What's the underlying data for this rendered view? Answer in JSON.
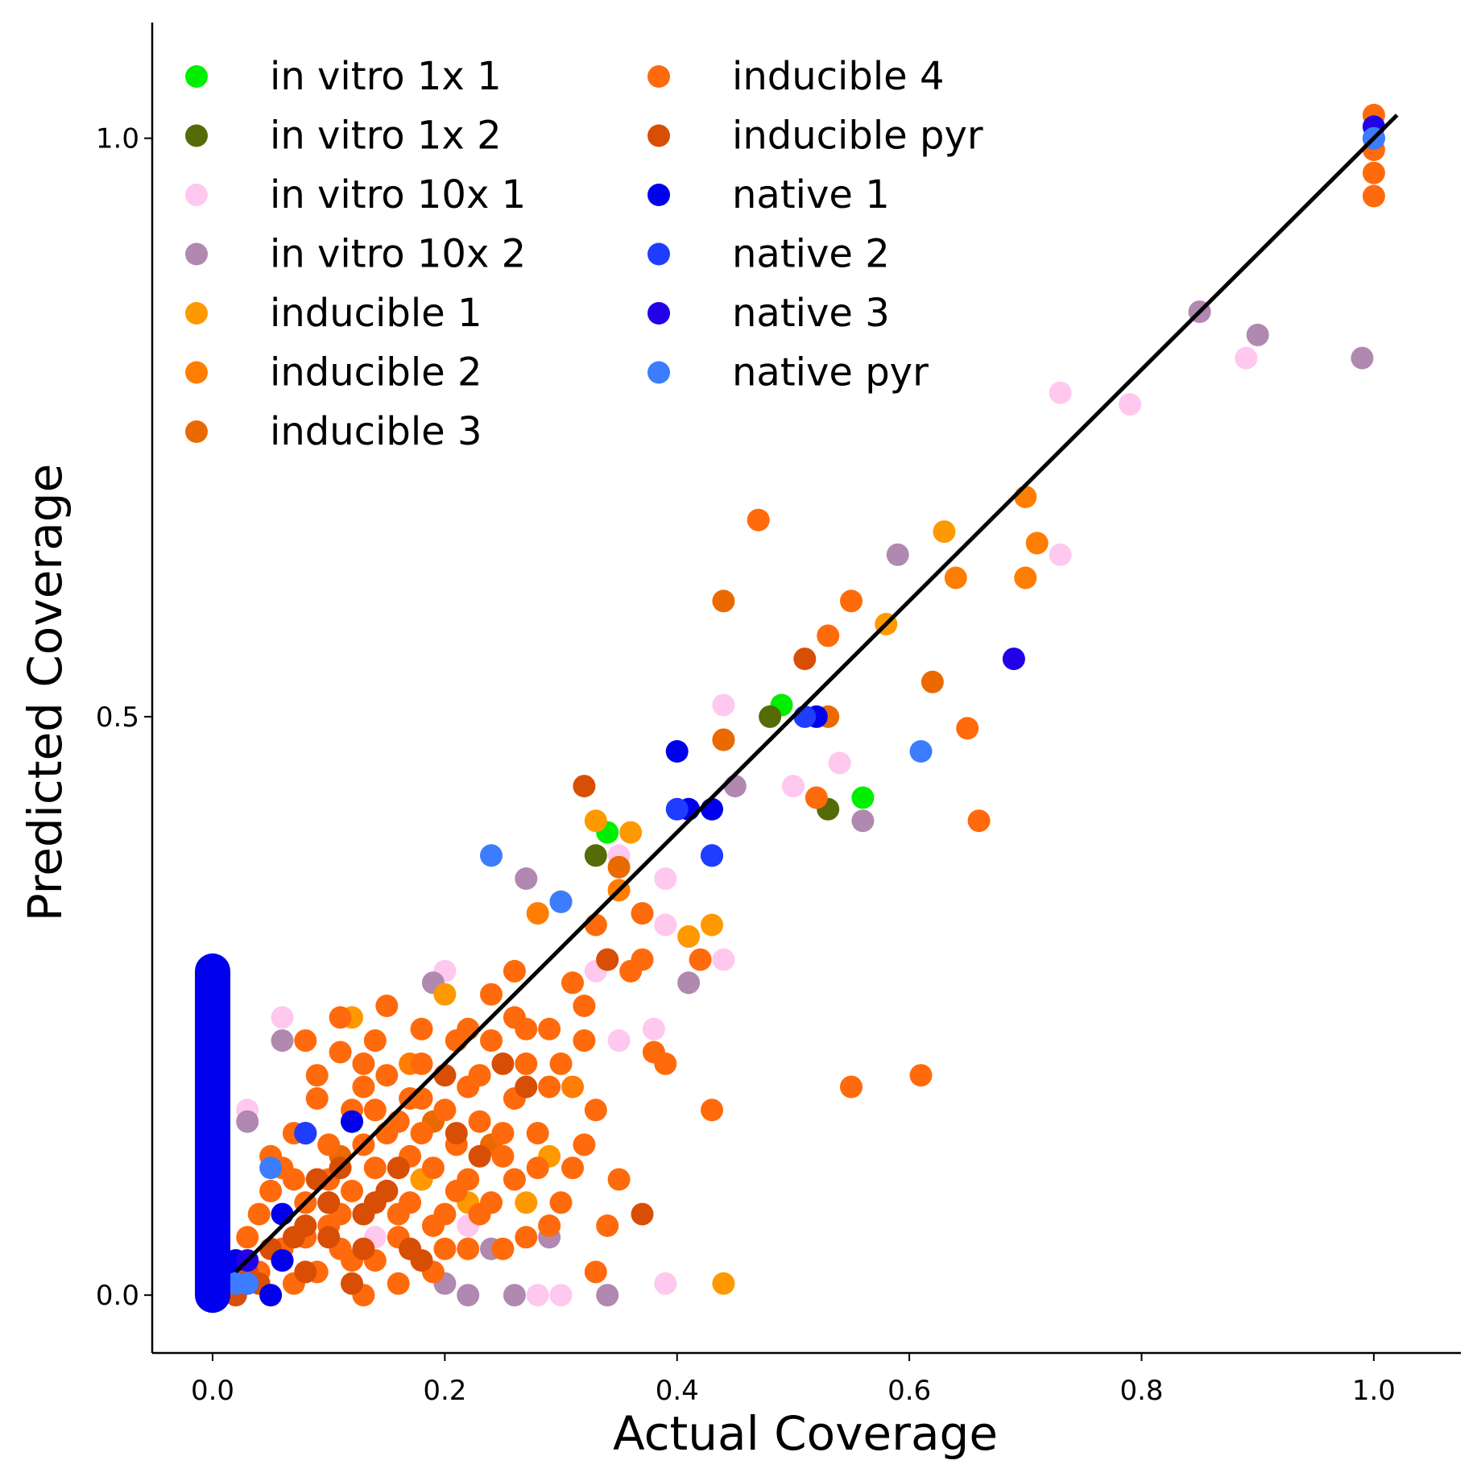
{
  "chart_data": {
    "type": "scatter",
    "xlabel": "Actual Coverage",
    "ylabel": "Predicted Coverage",
    "xlim": [
      -0.052,
      1.075
    ],
    "ylim": [
      -0.05,
      1.1
    ],
    "xticks": [
      "0.0",
      "0.2",
      "0.4",
      "0.6",
      "0.8",
      "1.0"
    ],
    "yticks": [
      "0.0",
      "0.5",
      "1.0"
    ],
    "grid": false,
    "legend_position": "top-left, two columns",
    "diagonal_line": {
      "x": [
        0.02,
        1.02
      ],
      "y": [
        0.02,
        1.02
      ],
      "color": "#000000"
    },
    "series": [
      {
        "name": "in vitro 1x 1",
        "color": "#00ee00",
        "points": [
          [
            0.49,
            0.51
          ],
          [
            0.56,
            0.43
          ],
          [
            0.34,
            0.4
          ],
          [
            0.12,
            0.15
          ],
          [
            0.18,
            0.1
          ]
        ]
      },
      {
        "name": "in vitro 1x 2",
        "color": "#556b08",
        "points": [
          [
            0.48,
            0.5
          ],
          [
            0.53,
            0.42
          ],
          [
            0.33,
            0.38
          ],
          [
            0.1,
            0.08
          ]
        ]
      },
      {
        "name": "in vitro 10x 1",
        "color": "#ffc8ee",
        "points": [
          [
            0.89,
            0.81
          ],
          [
            0.79,
            0.77
          ],
          [
            0.73,
            0.78
          ],
          [
            0.73,
            0.64
          ],
          [
            0.44,
            0.51
          ],
          [
            0.54,
            0.46
          ],
          [
            0.5,
            0.44
          ],
          [
            0.39,
            0.36
          ],
          [
            0.35,
            0.38
          ],
          [
            0.44,
            0.29
          ],
          [
            0.39,
            0.32
          ],
          [
            0.2,
            0.28
          ],
          [
            0.33,
            0.28
          ],
          [
            0.35,
            0.22
          ],
          [
            0.38,
            0.23
          ],
          [
            0.06,
            0.24
          ],
          [
            0.03,
            0.16
          ],
          [
            0.39,
            0.01
          ],
          [
            0.3,
            0.0
          ],
          [
            0.28,
            0.0
          ],
          [
            0.14,
            0.05
          ],
          [
            0.22,
            0.06
          ]
        ]
      },
      {
        "name": "in vitro 10x 2",
        "color": "#b088b0",
        "points": [
          [
            0.85,
            0.85
          ],
          [
            0.9,
            0.83
          ],
          [
            0.99,
            0.81
          ],
          [
            0.59,
            0.64
          ],
          [
            0.44,
            0.48
          ],
          [
            0.45,
            0.44
          ],
          [
            0.56,
            0.41
          ],
          [
            0.27,
            0.36
          ],
          [
            0.3,
            0.34
          ],
          [
            0.19,
            0.27
          ],
          [
            0.41,
            0.27
          ],
          [
            0.06,
            0.22
          ],
          [
            0.03,
            0.15
          ],
          [
            0.34,
            0.0
          ],
          [
            0.26,
            0.0
          ],
          [
            0.22,
            0.0
          ],
          [
            0.2,
            0.01
          ],
          [
            0.24,
            0.04
          ],
          [
            0.29,
            0.05
          ]
        ]
      },
      {
        "name": "inducible 1",
        "color": "#ff9900",
        "points": [
          [
            0.63,
            0.66
          ],
          [
            0.58,
            0.58
          ],
          [
            0.36,
            0.4
          ],
          [
            0.33,
            0.41
          ],
          [
            0.43,
            0.32
          ],
          [
            0.41,
            0.31
          ],
          [
            0.12,
            0.24
          ],
          [
            0.2,
            0.26
          ],
          [
            0.29,
            0.12
          ],
          [
            0.44,
            0.01
          ],
          [
            0.18,
            0.1
          ],
          [
            0.22,
            0.08
          ],
          [
            0.27,
            0.08
          ]
        ]
      },
      {
        "name": "inducible 2",
        "color": "#ff7d00",
        "points": [
          [
            0.7,
            0.69
          ],
          [
            0.71,
            0.65
          ],
          [
            0.7,
            0.62
          ],
          [
            0.64,
            0.62
          ],
          [
            0.35,
            0.35
          ],
          [
            0.28,
            0.33
          ],
          [
            0.17,
            0.2
          ],
          [
            0.31,
            0.18
          ]
        ]
      },
      {
        "name": "inducible 3",
        "color": "#ea6a00",
        "points": [
          [
            0.44,
            0.6
          ],
          [
            0.62,
            0.53
          ],
          [
            0.53,
            0.5
          ],
          [
            0.44,
            0.48
          ],
          [
            0.35,
            0.37
          ],
          [
            0.24,
            0.13
          ],
          [
            0.19,
            0.15
          ],
          [
            0.11,
            0.12
          ]
        ]
      },
      {
        "name": "inducible 4",
        "color": "#ff6a0c",
        "points": [
          [
            1.0,
            1.02
          ],
          [
            1.0,
            0.99
          ],
          [
            1.0,
            0.97
          ],
          [
            1.0,
            0.95
          ],
          [
            0.47,
            0.67
          ],
          [
            0.55,
            0.6
          ],
          [
            0.53,
            0.57
          ],
          [
            0.65,
            0.49
          ],
          [
            0.66,
            0.41
          ],
          [
            0.52,
            0.43
          ],
          [
            0.61,
            0.19
          ],
          [
            0.55,
            0.18
          ],
          [
            0.43,
            0.16
          ],
          [
            0.37,
            0.33
          ],
          [
            0.36,
            0.28
          ],
          [
            0.34,
            0.29
          ],
          [
            0.33,
            0.02
          ],
          [
            0.37,
            0.29
          ],
          [
            0.33,
            0.32
          ],
          [
            0.3,
            0.34
          ],
          [
            0.32,
            0.25
          ],
          [
            0.38,
            0.21
          ],
          [
            0.42,
            0.29
          ],
          [
            0.39,
            0.2
          ],
          [
            0.11,
            0.24
          ],
          [
            0.08,
            0.22
          ],
          [
            0.15,
            0.25
          ],
          [
            0.26,
            0.28
          ],
          [
            0.24,
            0.22
          ],
          [
            0.22,
            0.18
          ],
          [
            0.18,
            0.2
          ],
          [
            0.14,
            0.16
          ],
          [
            0.1,
            0.13
          ],
          [
            0.07,
            0.1
          ],
          [
            0.16,
            0.05
          ],
          [
            0.2,
            0.07
          ],
          [
            0.25,
            0.04
          ],
          [
            0.29,
            0.06
          ],
          [
            0.35,
            0.1
          ],
          [
            0.3,
            0.2
          ],
          [
            0.27,
            0.23
          ],
          [
            0.13,
            0.18
          ],
          [
            0.09,
            0.17
          ],
          [
            0.05,
            0.12
          ],
          [
            0.17,
            0.12
          ],
          [
            0.21,
            0.13
          ],
          [
            0.23,
            0.15
          ],
          [
            0.26,
            0.17
          ],
          [
            0.31,
            0.27
          ],
          [
            0.04,
            0.07
          ],
          [
            0.12,
            0.03
          ],
          [
            0.19,
            0.02
          ],
          [
            0.15,
            0.09
          ],
          [
            0.28,
            0.11
          ],
          [
            0.33,
            0.16
          ],
          [
            0.06,
            0.04
          ],
          [
            0.1,
            0.06
          ],
          [
            0.14,
            0.11
          ],
          [
            0.18,
            0.14
          ],
          [
            0.22,
            0.1
          ],
          [
            0.25,
            0.12
          ],
          [
            0.08,
            0.05
          ],
          [
            0.12,
            0.09
          ],
          [
            0.16,
            0.07
          ],
          [
            0.2,
            0.04
          ],
          [
            0.24,
            0.08
          ],
          [
            0.27,
            0.2
          ],
          [
            0.29,
            0.18
          ],
          [
            0.32,
            0.13
          ],
          [
            0.11,
            0.21
          ],
          [
            0.13,
            0.13
          ],
          [
            0.17,
            0.17
          ],
          [
            0.21,
            0.22
          ],
          [
            0.23,
            0.19
          ],
          [
            0.05,
            0.09
          ],
          [
            0.09,
            0.02
          ],
          [
            0.14,
            0.03
          ],
          [
            0.03,
            0.05
          ],
          [
            0.07,
            0.14
          ],
          [
            0.15,
            0.14
          ],
          [
            0.19,
            0.11
          ],
          [
            0.26,
            0.1
          ],
          [
            0.3,
            0.08
          ],
          [
            0.34,
            0.06
          ],
          [
            0.11,
            0.07
          ],
          [
            0.16,
            0.01
          ],
          [
            0.13,
            0.2
          ],
          [
            0.18,
            0.23
          ],
          [
            0.2,
            0.16
          ],
          [
            0.24,
            0.26
          ],
          [
            0.28,
            0.14
          ],
          [
            0.32,
            0.22
          ],
          [
            0.06,
            0.11
          ],
          [
            0.1,
            0.1
          ],
          [
            0.04,
            0.02
          ],
          [
            0.08,
            0.08
          ],
          [
            0.17,
            0.08
          ],
          [
            0.22,
            0.04
          ],
          [
            0.12,
            0.16
          ],
          [
            0.15,
            0.19
          ],
          [
            0.19,
            0.06
          ],
          [
            0.23,
            0.07
          ],
          [
            0.27,
            0.05
          ],
          [
            0.07,
            0.01
          ],
          [
            0.11,
            0.04
          ],
          [
            0.14,
            0.22
          ],
          [
            0.16,
            0.15
          ],
          [
            0.21,
            0.09
          ],
          [
            0.25,
            0.14
          ],
          [
            0.29,
            0.23
          ],
          [
            0.31,
            0.11
          ],
          [
            0.09,
            0.19
          ],
          [
            0.05,
            0.0
          ],
          [
            0.13,
            0.0
          ],
          [
            0.02,
            0.03
          ],
          [
            0.26,
            0.24
          ],
          [
            0.22,
            0.23
          ],
          [
            0.18,
            0.17
          ]
        ]
      },
      {
        "name": "inducible pyr",
        "color": "#d94e05",
        "points": [
          [
            0.51,
            0.55
          ],
          [
            0.32,
            0.44
          ],
          [
            0.37,
            0.07
          ],
          [
            0.34,
            0.29
          ],
          [
            0.15,
            0.09
          ],
          [
            0.1,
            0.05
          ],
          [
            0.06,
            0.03
          ],
          [
            0.13,
            0.07
          ],
          [
            0.18,
            0.03
          ],
          [
            0.08,
            0.06
          ],
          [
            0.04,
            0.01
          ],
          [
            0.12,
            0.01
          ],
          [
            0.16,
            0.11
          ],
          [
            0.21,
            0.14
          ],
          [
            0.27,
            0.18
          ],
          [
            0.25,
            0.2
          ],
          [
            0.2,
            0.19
          ],
          [
            0.14,
            0.08
          ],
          [
            0.09,
            0.1
          ],
          [
            0.07,
            0.05
          ],
          [
            0.11,
            0.11
          ],
          [
            0.17,
            0.04
          ],
          [
            0.05,
            0.04
          ],
          [
            0.03,
            0.02
          ],
          [
            0.02,
            0.0
          ],
          [
            0.08,
            0.02
          ],
          [
            0.1,
            0.08
          ],
          [
            0.13,
            0.04
          ],
          [
            0.23,
            0.12
          ]
        ]
      },
      {
        "name": "native 1",
        "color": "#0000ee",
        "points": [
          [
            0.52,
            0.5
          ],
          [
            0.4,
            0.47
          ],
          [
            0.41,
            0.42
          ],
          [
            0.43,
            0.42
          ],
          [
            0.43,
            0.38
          ],
          [
            0.12,
            0.15
          ],
          [
            0.08,
            0.14
          ],
          [
            0.06,
            0.07
          ],
          [
            0.06,
            0.03
          ],
          [
            0.02,
            0.03
          ],
          [
            0.03,
            0.01
          ],
          [
            0.05,
            0.0
          ],
          [
            0.01,
            0.02
          ]
        ]
      },
      {
        "name": "native 2",
        "color": "#1f3dff",
        "points": [
          [
            0.51,
            0.5
          ],
          [
            0.4,
            0.42
          ],
          [
            0.43,
            0.38
          ],
          [
            0.08,
            0.14
          ],
          [
            1.0,
            1.0
          ],
          [
            0.02,
            0.01
          ]
        ]
      },
      {
        "name": "native 3",
        "color": "#2200e8",
        "points": [
          [
            1.0,
            1.01
          ],
          [
            0.69,
            0.55
          ],
          [
            0.03,
            0.03
          ]
        ]
      },
      {
        "name": "native pyr",
        "color": "#3c7dff",
        "points": [
          [
            1.0,
            1.0
          ],
          [
            0.61,
            0.47
          ],
          [
            0.24,
            0.38
          ],
          [
            0.3,
            0.34
          ],
          [
            0.05,
            0.11
          ],
          [
            0.02,
            0.01
          ],
          [
            0.03,
            0.01
          ]
        ]
      }
    ],
    "native_column": {
      "x": 0.0,
      "color": "#0000ee",
      "values": [
        0.28,
        0.24,
        0.22,
        0.2,
        0.18,
        0.16,
        0.15,
        0.14,
        0.13,
        0.12,
        0.11,
        0.1,
        0.09,
        0.08,
        0.07,
        0.06,
        0.05,
        0.04,
        0.03,
        0.02,
        0.01,
        0.0
      ]
    }
  }
}
